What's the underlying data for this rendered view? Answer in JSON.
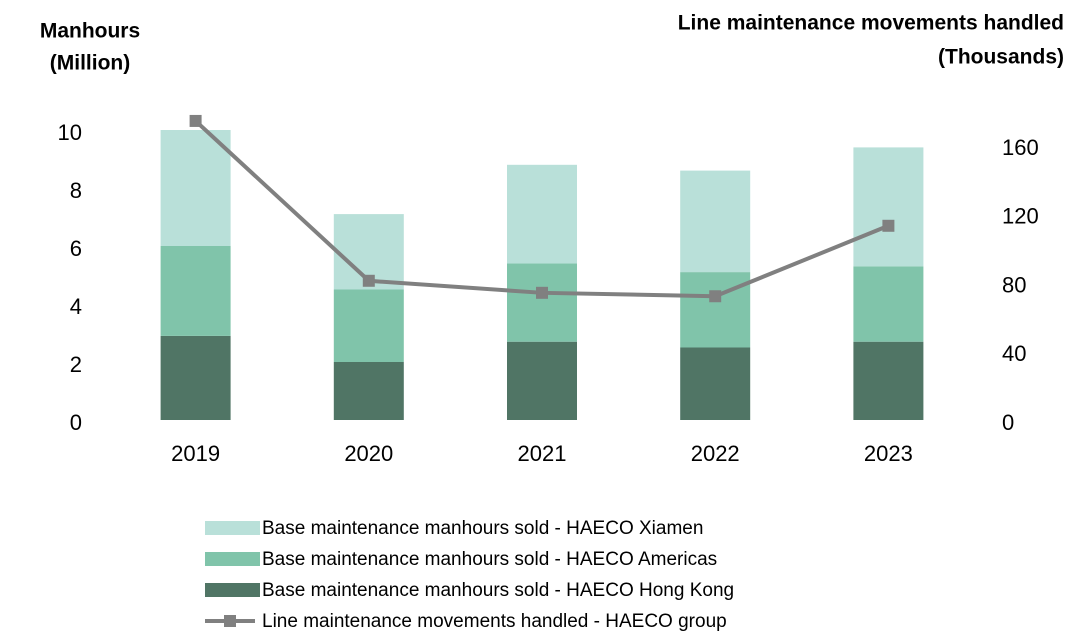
{
  "chart_data": {
    "type": "bar",
    "y_label": [
      "Manhours",
      "(Million)"
    ],
    "y2_label": [
      "Line maintenance movements handled",
      "(Thousands)"
    ],
    "categories": [
      "2019",
      "2020",
      "2021",
      "2022",
      "2023"
    ],
    "stacked": true,
    "ylim": [
      0,
      10
    ],
    "yticks": [
      0,
      2,
      4,
      6,
      8,
      10
    ],
    "y2lim": [
      0,
      160
    ],
    "y2ticks": [
      0,
      40,
      80,
      120,
      160
    ],
    "series": [
      {
        "name": "Base maintenance manhours sold - HAECO Xiamen",
        "color": "#b9e0d9",
        "values": [
          4.0,
          2.6,
          3.4,
          3.5,
          4.1
        ]
      },
      {
        "name": "Base maintenance manhours sold - HAECO Americas",
        "color": "#80c4aa",
        "values": [
          3.1,
          2.5,
          2.7,
          2.6,
          2.6
        ]
      },
      {
        "name": "Base maintenance manhours sold - HAECO Hong Kong",
        "color": "#507565",
        "values": [
          2.9,
          2.0,
          2.7,
          2.5,
          2.7
        ]
      },
      {
        "name": "Line maintenance movements handled - HAECO group",
        "color": "#808080",
        "type": "line",
        "axis": "y2",
        "values": [
          174,
          81,
          74,
          72,
          113
        ]
      }
    ]
  }
}
